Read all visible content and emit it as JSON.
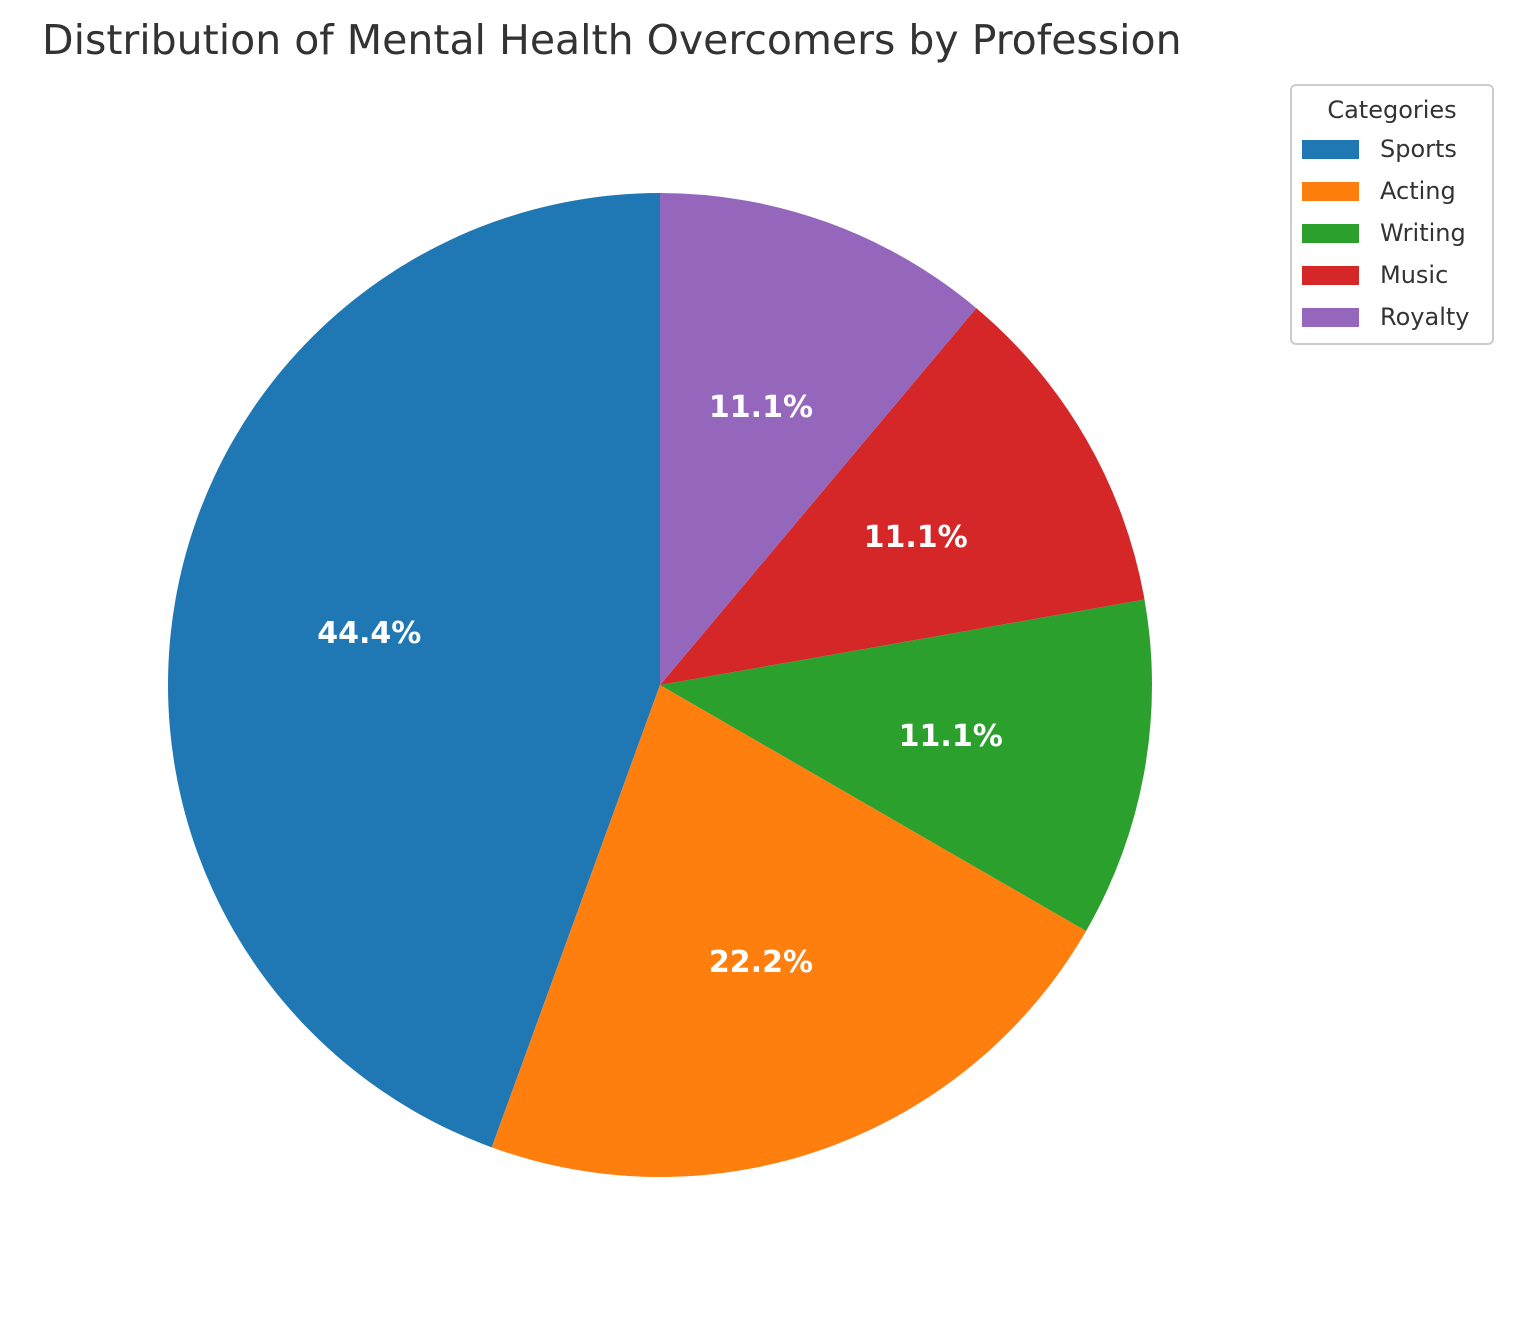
{
  "chart_data": {
    "type": "pie",
    "title": "Distribution of Mental Health Overcomers by Profession",
    "categories": [
      "Sports",
      "Acting",
      "Writing",
      "Music",
      "Royalty"
    ],
    "values": [
      44.4,
      22.2,
      11.1,
      11.1,
      11.1
    ],
    "value_labels": [
      "44.4%",
      "22.2%",
      "11.1%",
      "11.1%",
      "11.1%"
    ],
    "colors": [
      "#1f77b4",
      "#ff7f0e",
      "#2ca02c",
      "#d62728",
      "#9467bd"
    ],
    "start_angle_deg": 90,
    "direction": "counterclockwise",
    "legend": {
      "title": "Categories",
      "placement": "top-right"
    }
  }
}
